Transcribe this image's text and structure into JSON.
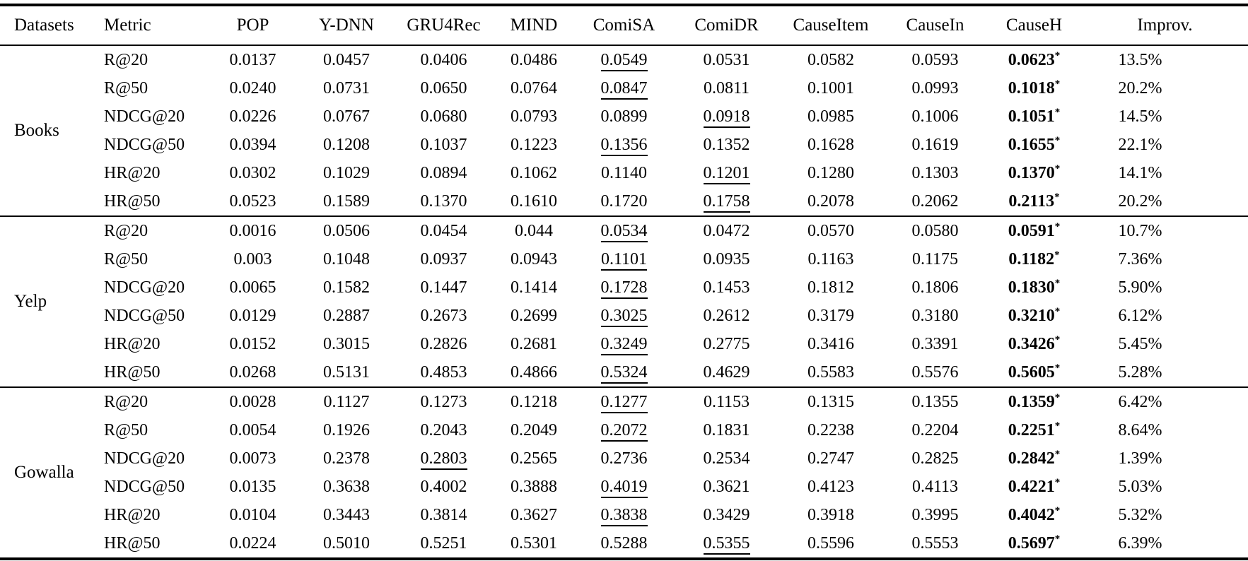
{
  "colors": {
    "text": "#000000",
    "background": "#ffffff",
    "rule": "#000000"
  },
  "table": {
    "columns": [
      "Datasets",
      "Metric",
      "POP",
      "Y-DNN",
      "GRU4Rec",
      "MIND",
      "ComiSA",
      "ComiDR",
      "CauseItem",
      "CauseIn",
      "CauseH",
      "Improv."
    ],
    "best_marker": "*",
    "groups": [
      {
        "dataset": "Books",
        "rows": [
          {
            "metric": "R@20",
            "values": [
              "0.0137",
              "0.0457",
              "0.0406",
              "0.0486",
              "0.0549",
              "0.0531",
              "0.0582",
              "0.0593"
            ],
            "second_best_index": 4,
            "causeh": "0.0623",
            "improv": "13.5%"
          },
          {
            "metric": "R@50",
            "values": [
              "0.0240",
              "0.0731",
              "0.0650",
              "0.0764",
              "0.0847",
              "0.0811",
              "0.1001",
              "0.0993"
            ],
            "second_best_index": 4,
            "causeh": "0.1018",
            "improv": "20.2%"
          },
          {
            "metric": "NDCG@20",
            "values": [
              "0.0226",
              "0.0767",
              "0.0680",
              "0.0793",
              "0.0899",
              "0.0918",
              "0.0985",
              "0.1006"
            ],
            "second_best_index": 5,
            "causeh": "0.1051",
            "improv": "14.5%"
          },
          {
            "metric": "NDCG@50",
            "values": [
              "0.0394",
              "0.1208",
              "0.1037",
              "0.1223",
              "0.1356",
              "0.1352",
              "0.1628",
              "0.1619"
            ],
            "second_best_index": 4,
            "causeh": "0.1655",
            "improv": "22.1%"
          },
          {
            "metric": "HR@20",
            "values": [
              "0.0302",
              "0.1029",
              "0.0894",
              "0.1062",
              "0.1140",
              "0.1201",
              "0.1280",
              "0.1303"
            ],
            "second_best_index": 5,
            "causeh": "0.1370",
            "improv": "14.1%"
          },
          {
            "metric": "HR@50",
            "values": [
              "0.0523",
              "0.1589",
              "0.1370",
              "0.1610",
              "0.1720",
              "0.1758",
              "0.2078",
              "0.2062"
            ],
            "second_best_index": 5,
            "causeh": "0.2113",
            "improv": "20.2%"
          }
        ]
      },
      {
        "dataset": "Yelp",
        "rows": [
          {
            "metric": "R@20",
            "values": [
              "0.0016",
              "0.0506",
              "0.0454",
              "0.044",
              "0.0534",
              "0.0472",
              "0.0570",
              "0.0580"
            ],
            "second_best_index": 4,
            "causeh": "0.0591",
            "improv": "10.7%"
          },
          {
            "metric": "R@50",
            "values": [
              "0.003",
              "0.1048",
              "0.0937",
              "0.0943",
              "0.1101",
              "0.0935",
              "0.1163",
              "0.1175"
            ],
            "second_best_index": 4,
            "causeh": "0.1182",
            "improv": "7.36%"
          },
          {
            "metric": "NDCG@20",
            "values": [
              "0.0065",
              "0.1582",
              "0.1447",
              "0.1414",
              "0.1728",
              "0.1453",
              "0.1812",
              "0.1806"
            ],
            "second_best_index": 4,
            "causeh": "0.1830",
            "improv": "5.90%"
          },
          {
            "metric": "NDCG@50",
            "values": [
              "0.0129",
              "0.2887",
              "0.2673",
              "0.2699",
              "0.3025",
              "0.2612",
              "0.3179",
              "0.3180"
            ],
            "second_best_index": 4,
            "causeh": "0.3210",
            "improv": "6.12%"
          },
          {
            "metric": "HR@20",
            "values": [
              "0.0152",
              "0.3015",
              "0.2826",
              "0.2681",
              "0.3249",
              "0.2775",
              "0.3416",
              "0.3391"
            ],
            "second_best_index": 4,
            "causeh": "0.3426",
            "improv": "5.45%"
          },
          {
            "metric": "HR@50",
            "values": [
              "0.0268",
              "0.5131",
              "0.4853",
              "0.4866",
              "0.5324",
              "0.4629",
              "0.5583",
              "0.5576"
            ],
            "second_best_index": 4,
            "causeh": "0.5605",
            "improv": "5.28%"
          }
        ]
      },
      {
        "dataset": "Gowalla",
        "rows": [
          {
            "metric": "R@20",
            "values": [
              "0.0028",
              "0.1127",
              "0.1273",
              "0.1218",
              "0.1277",
              "0.1153",
              "0.1315",
              "0.1355"
            ],
            "second_best_index": 4,
            "causeh": "0.1359",
            "improv": "6.42%"
          },
          {
            "metric": "R@50",
            "values": [
              "0.0054",
              "0.1926",
              "0.2043",
              "0.2049",
              "0.2072",
              "0.1831",
              "0.2238",
              "0.2204"
            ],
            "second_best_index": 4,
            "causeh": "0.2251",
            "improv": "8.64%"
          },
          {
            "metric": "NDCG@20",
            "values": [
              "0.0073",
              "0.2378",
              "0.2803",
              "0.2565",
              "0.2736",
              "0.2534",
              "0.2747",
              "0.2825"
            ],
            "second_best_index": 2,
            "causeh": "0.2842",
            "improv": "1.39%"
          },
          {
            "metric": "NDCG@50",
            "values": [
              "0.0135",
              "0.3638",
              "0.4002",
              "0.3888",
              "0.4019",
              "0.3621",
              "0.4123",
              "0.4113"
            ],
            "second_best_index": 4,
            "causeh": "0.4221",
            "improv": "5.03%"
          },
          {
            "metric": "HR@20",
            "values": [
              "0.0104",
              "0.3443",
              "0.3814",
              "0.3627",
              "0.3838",
              "0.3429",
              "0.3918",
              "0.3995"
            ],
            "second_best_index": 4,
            "causeh": "0.4042",
            "improv": "5.32%"
          },
          {
            "metric": "HR@50",
            "values": [
              "0.0224",
              "0.5010",
              "0.5251",
              "0.5301",
              "0.5288",
              "0.5355",
              "0.5596",
              "0.5553"
            ],
            "second_best_index": 5,
            "causeh": "0.5697",
            "improv": "6.39%"
          }
        ]
      }
    ]
  }
}
